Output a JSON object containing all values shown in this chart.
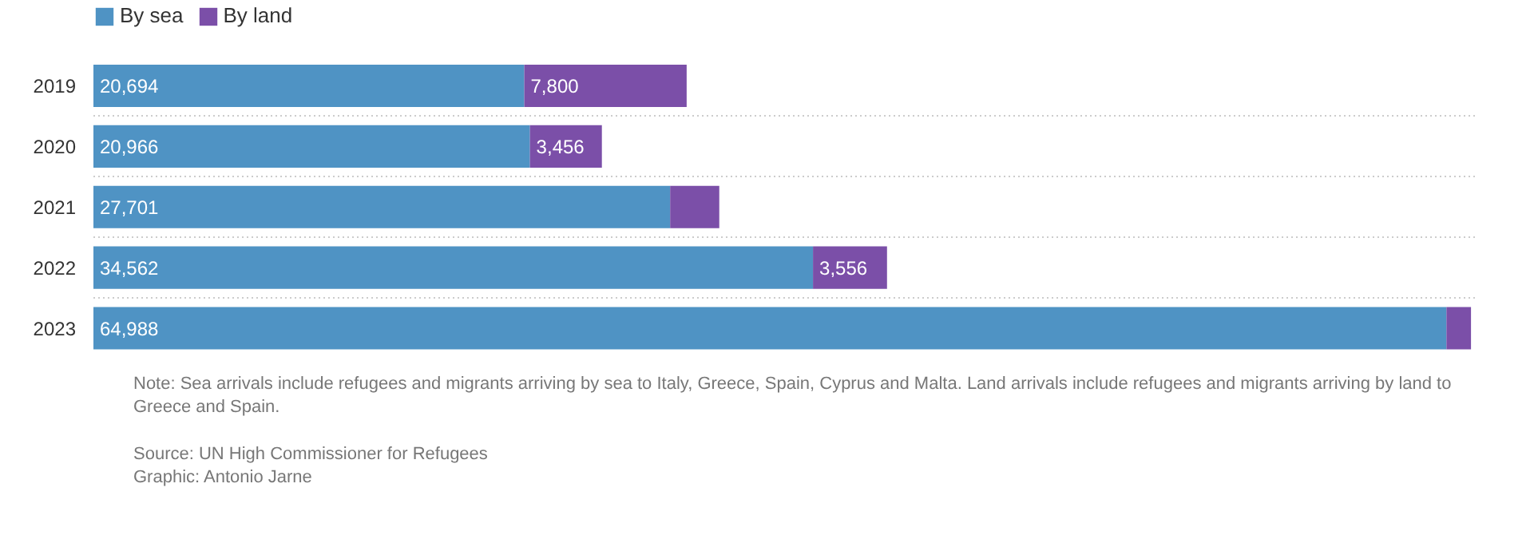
{
  "chart_data": {
    "type": "bar",
    "orientation": "horizontal",
    "stacked": true,
    "categories": [
      "2019",
      "2020",
      "2021",
      "2022",
      "2023"
    ],
    "series": [
      {
        "name": "By sea",
        "color": "#4f93c4",
        "values": [
          20694,
          20966,
          27701,
          34562,
          64988
        ],
        "value_labels": [
          "20,694",
          "20,966",
          "27,701",
          "34,562",
          "64,988"
        ]
      },
      {
        "name": "By land",
        "color": "#7b4fa8",
        "values": [
          7800,
          3456,
          2360,
          3556,
          1180
        ],
        "value_labels": [
          "7,800",
          "3,456",
          null,
          "3,556",
          null
        ]
      }
    ],
    "legend": "top left",
    "grid": "y",
    "annotations": [
      "Note: Sea arrivals include refugees and migrants arriving by sea to Italy, Greece, Spain, Cyprus and Malta. Land arrivals include refugees and migrants arriving by land to Greece and Spain.",
      "Source: UN High Commissioner for Refugees",
      "Graphic: Antonio Jarne"
    ]
  }
}
